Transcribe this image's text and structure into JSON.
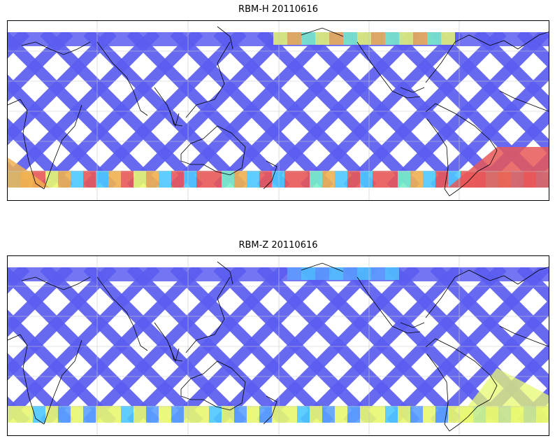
{
  "panels": [
    {
      "title": "RBM-H 20110616",
      "base_color": "#5a5df0",
      "hot_colors": [
        "#4ec8ff",
        "#7af0c8",
        "#e8f870",
        "#f0b050",
        "#e85858"
      ]
    },
    {
      "title": "RBM-Z 20110616",
      "base_color": "#5a5df0",
      "hot_colors": [
        "#5aa0ff",
        "#4ec8ff",
        "#7af0c8",
        "#e8f870"
      ]
    }
  ],
  "colors": {
    "coastline": "#000000",
    "gridline": "#c8c8c8"
  },
  "icons": {
    "coastline": "coastline-outline",
    "swath": "satellite-swath-band"
  }
}
